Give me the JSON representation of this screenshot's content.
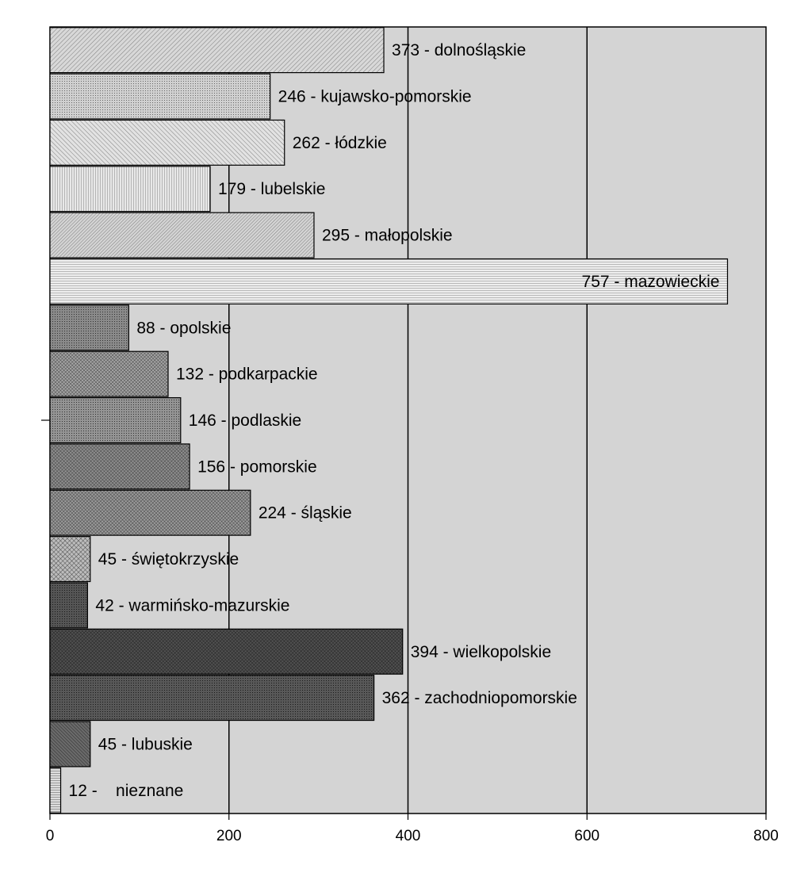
{
  "chart_data": {
    "type": "bar",
    "orientation": "horizontal",
    "title": "",
    "xlabel": "",
    "ylabel": "",
    "xlim": [
      0,
      800
    ],
    "x_ticks": [
      0,
      200,
      400,
      600,
      800
    ],
    "grid": "vertical",
    "plot_background": "#d4d4d4",
    "categories": [
      "dolnośląskie",
      "kujawsko-pomorskie",
      "łódzkie",
      "lubelskie",
      "małopolskie",
      "mazowieckie",
      "opolskie",
      "podkarpackie",
      "podlaskie",
      "pomorskie",
      "śląskie",
      "świętokrzyskie",
      "warmińsko-mazurskie",
      "wielkopolskie",
      "zachodniopomorskie",
      "lubuskie",
      "nieznane"
    ],
    "values": [
      373,
      246,
      262,
      179,
      295,
      757,
      88,
      132,
      146,
      156,
      224,
      45,
      42,
      394,
      362,
      45,
      12
    ],
    "labels": [
      "373 - dolnośląskie",
      "246 - kujawsko-pomorskie",
      "262 - łódzkie",
      "179 - lubelskie",
      "295 - małopolskie",
      "757 - mazowieckie",
      "88 - opolskie",
      "132 - podkarpackie",
      "146 - podlaskie",
      "156 - pomorskie",
      "224 - śląskie",
      "45 - świętokrzyskie",
      "42 - warmińsko-mazurskie",
      "394 - wielkopolskie",
      "362 - zachodniopomorskie",
      "45 - lubuskie",
      "12 -    nieznane"
    ],
    "bar_colors": [
      "#d8d8d8",
      "#d0d0d0",
      "#e2e2e2",
      "#e8e8e8",
      "#d4d4d4",
      "#eeeeee",
      "#8a8a8a",
      "#a4a4a4",
      "#949494",
      "#8e8e8e",
      "#9a9a9a",
      "#bcbcbc",
      "#555555",
      "#505050",
      "#585858",
      "#6a6a6a",
      "#dddddd"
    ]
  }
}
